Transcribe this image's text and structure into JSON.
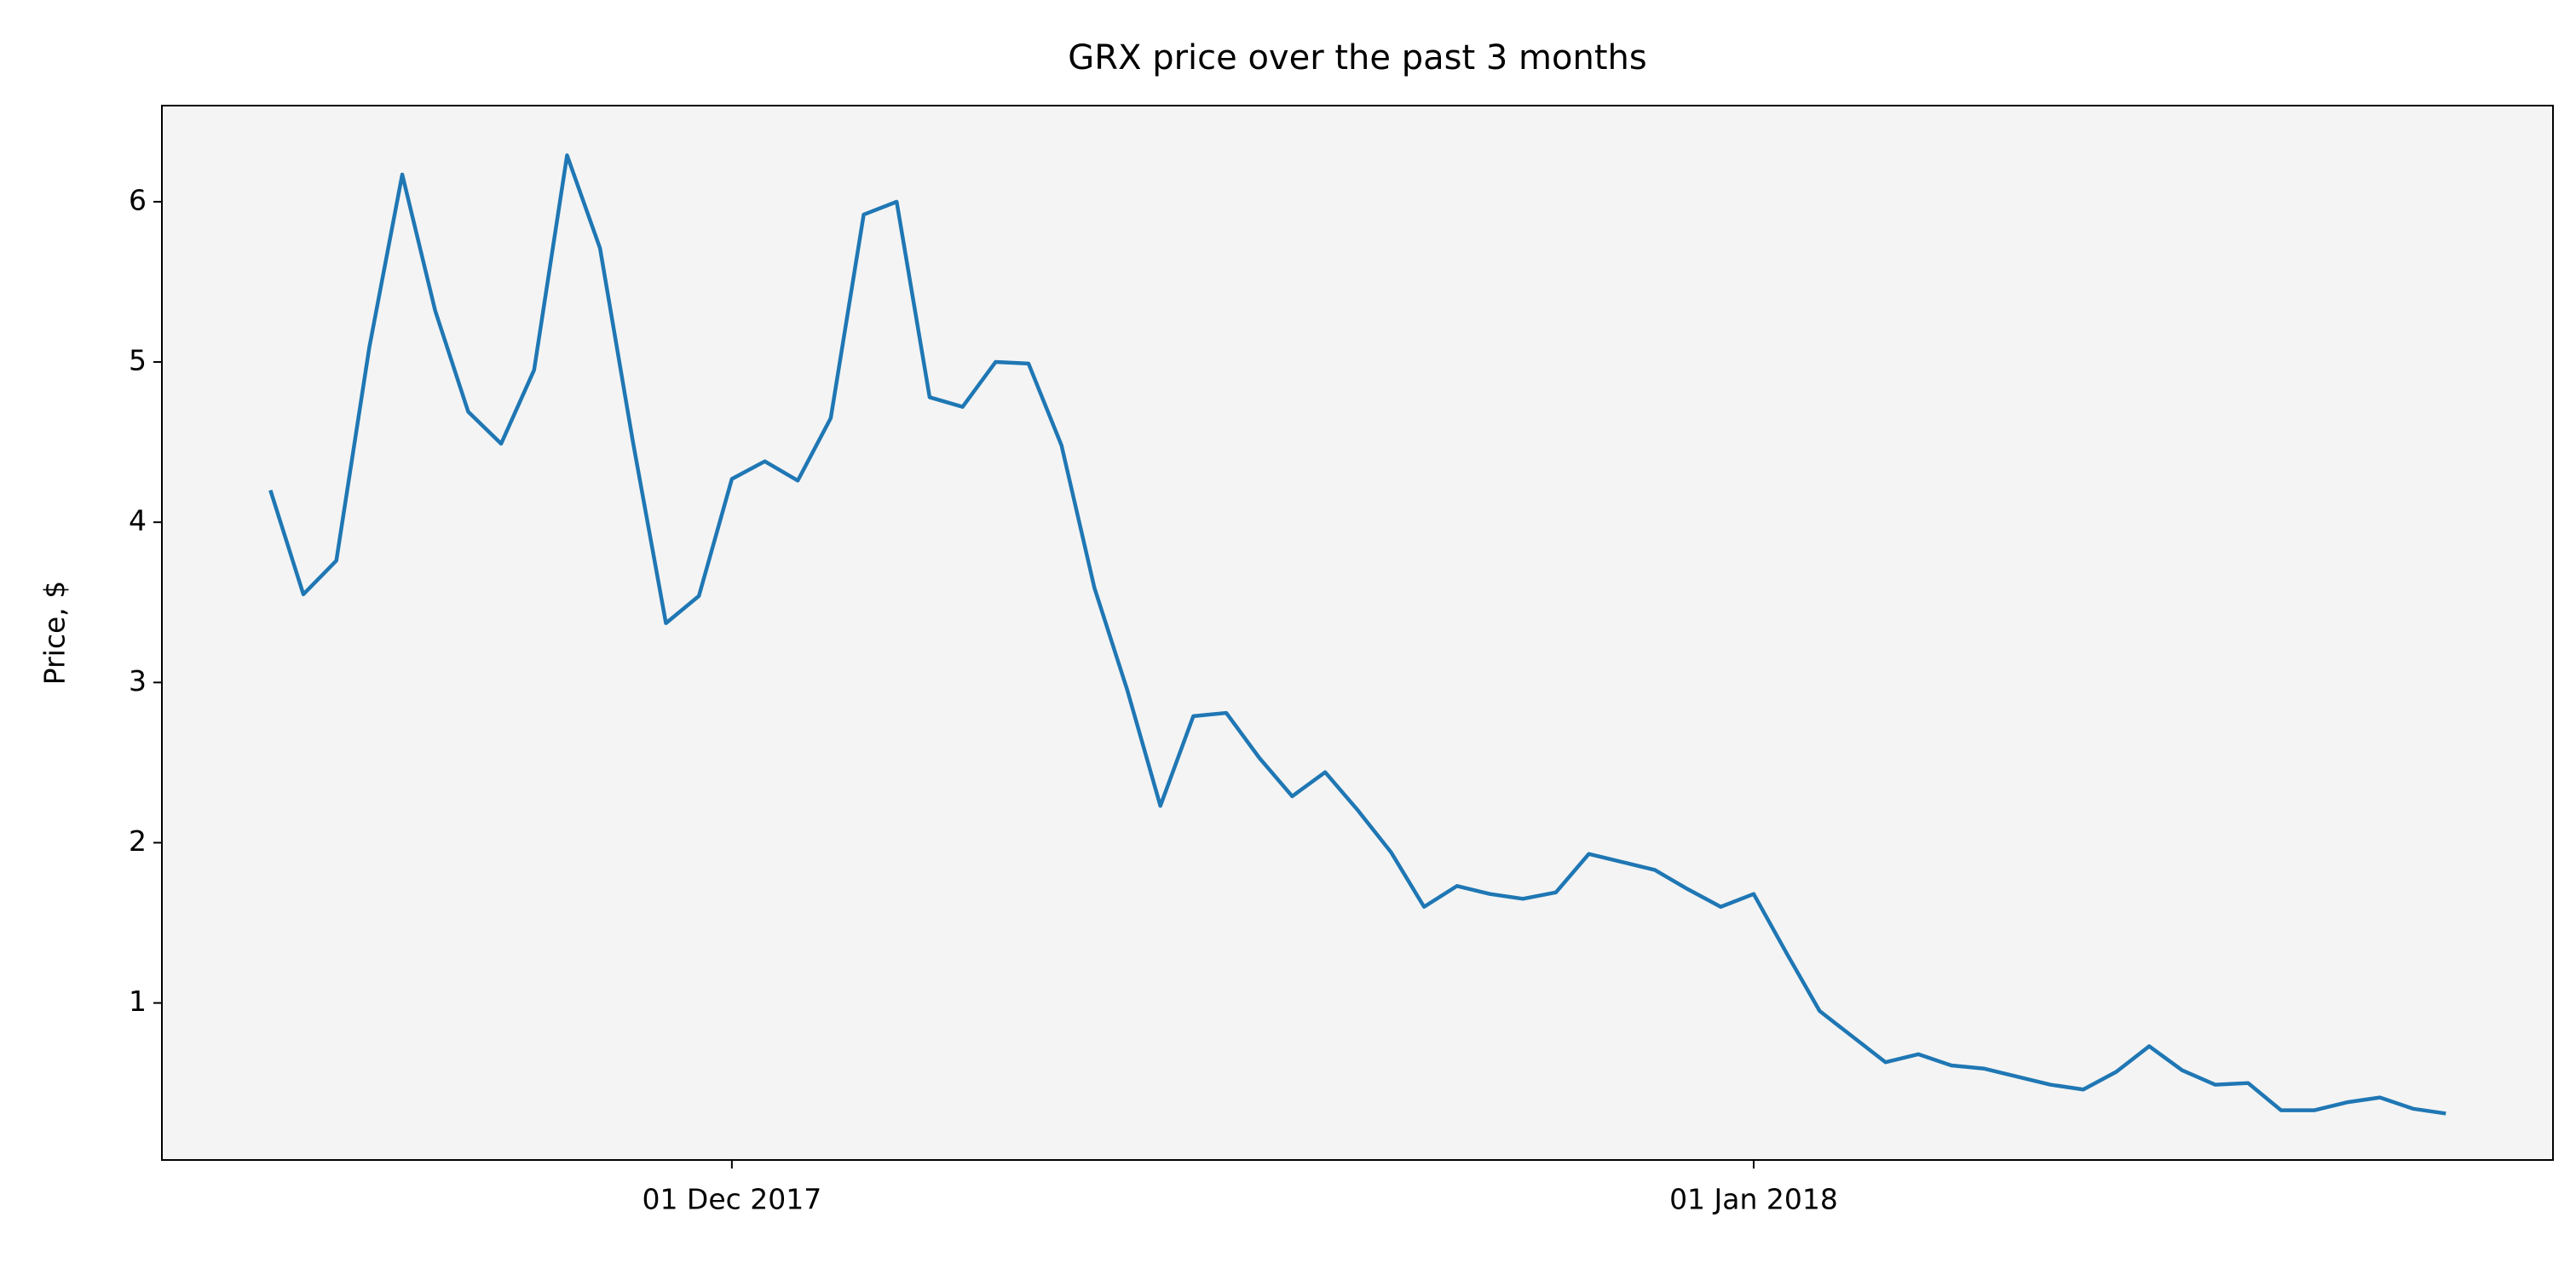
{
  "chart_data": {
    "type": "line",
    "title": "GRX price over the past 3 months",
    "ylabel": "Price, $",
    "x": [
      "2017-11-17",
      "2017-11-18",
      "2017-11-19",
      "2017-11-20",
      "2017-11-21",
      "2017-11-22",
      "2017-11-23",
      "2017-11-24",
      "2017-11-25",
      "2017-11-26",
      "2017-11-27",
      "2017-11-28",
      "2017-11-29",
      "2017-11-30",
      "2017-12-01",
      "2017-12-02",
      "2017-12-03",
      "2017-12-04",
      "2017-12-05",
      "2017-12-06",
      "2017-12-07",
      "2017-12-08",
      "2017-12-09",
      "2017-12-10",
      "2017-12-11",
      "2017-12-12",
      "2017-12-13",
      "2017-12-14",
      "2017-12-15",
      "2017-12-16",
      "2017-12-17",
      "2017-12-18",
      "2017-12-19",
      "2017-12-20",
      "2017-12-21",
      "2017-12-22",
      "2017-12-23",
      "2017-12-24",
      "2017-12-25",
      "2017-12-26",
      "2017-12-27",
      "2017-12-28",
      "2017-12-29",
      "2017-12-30",
      "2017-12-31",
      "2018-01-01",
      "2018-01-02",
      "2018-01-03",
      "2018-01-04",
      "2018-01-05",
      "2018-01-06",
      "2018-01-07",
      "2018-01-08",
      "2018-01-09",
      "2018-01-10",
      "2018-01-11",
      "2018-01-12",
      "2018-01-13",
      "2018-01-14",
      "2018-01-15",
      "2018-01-16",
      "2018-01-17",
      "2018-01-18",
      "2018-01-19",
      "2018-01-20",
      "2018-01-21",
      "2018-01-22"
    ],
    "series": [
      {
        "color": "#1f77b4",
        "values": [
          4.2,
          3.55,
          3.76,
          5.09,
          6.17,
          5.32,
          4.69,
          4.49,
          4.95,
          6.29,
          5.71,
          4.5,
          3.37,
          3.54,
          4.27,
          4.38,
          4.26,
          4.65,
          5.92,
          6.0,
          4.78,
          4.72,
          5.0,
          4.99,
          4.48,
          3.59,
          2.95,
          2.23,
          2.79,
          2.81,
          2.53,
          2.29,
          2.44,
          2.2,
          1.94,
          1.6,
          1.73,
          1.68,
          1.65,
          1.69,
          1.93,
          1.88,
          1.83,
          1.71,
          1.6,
          1.68,
          1.31,
          0.95,
          0.79,
          0.63,
          0.68,
          0.61,
          0.59,
          0.54,
          0.49,
          0.46,
          0.57,
          0.73,
          0.58,
          0.49,
          0.5,
          0.33,
          0.33,
          0.38,
          0.41,
          0.34,
          0.31
        ]
      }
    ],
    "xlim": [
      "2017-11-13T17:00:00Z",
      "2018-01-25T06:00:00Z"
    ],
    "xticks": [
      {
        "value": "2017-12-01",
        "label": "01 Dec 2017"
      },
      {
        "value": "2018-01-01",
        "label": "01 Jan 2018"
      }
    ],
    "ylim": [
      0.02,
      6.6
    ],
    "yticks": [
      1,
      2,
      3,
      4,
      5,
      6
    ],
    "background": "#f4f4f4"
  }
}
